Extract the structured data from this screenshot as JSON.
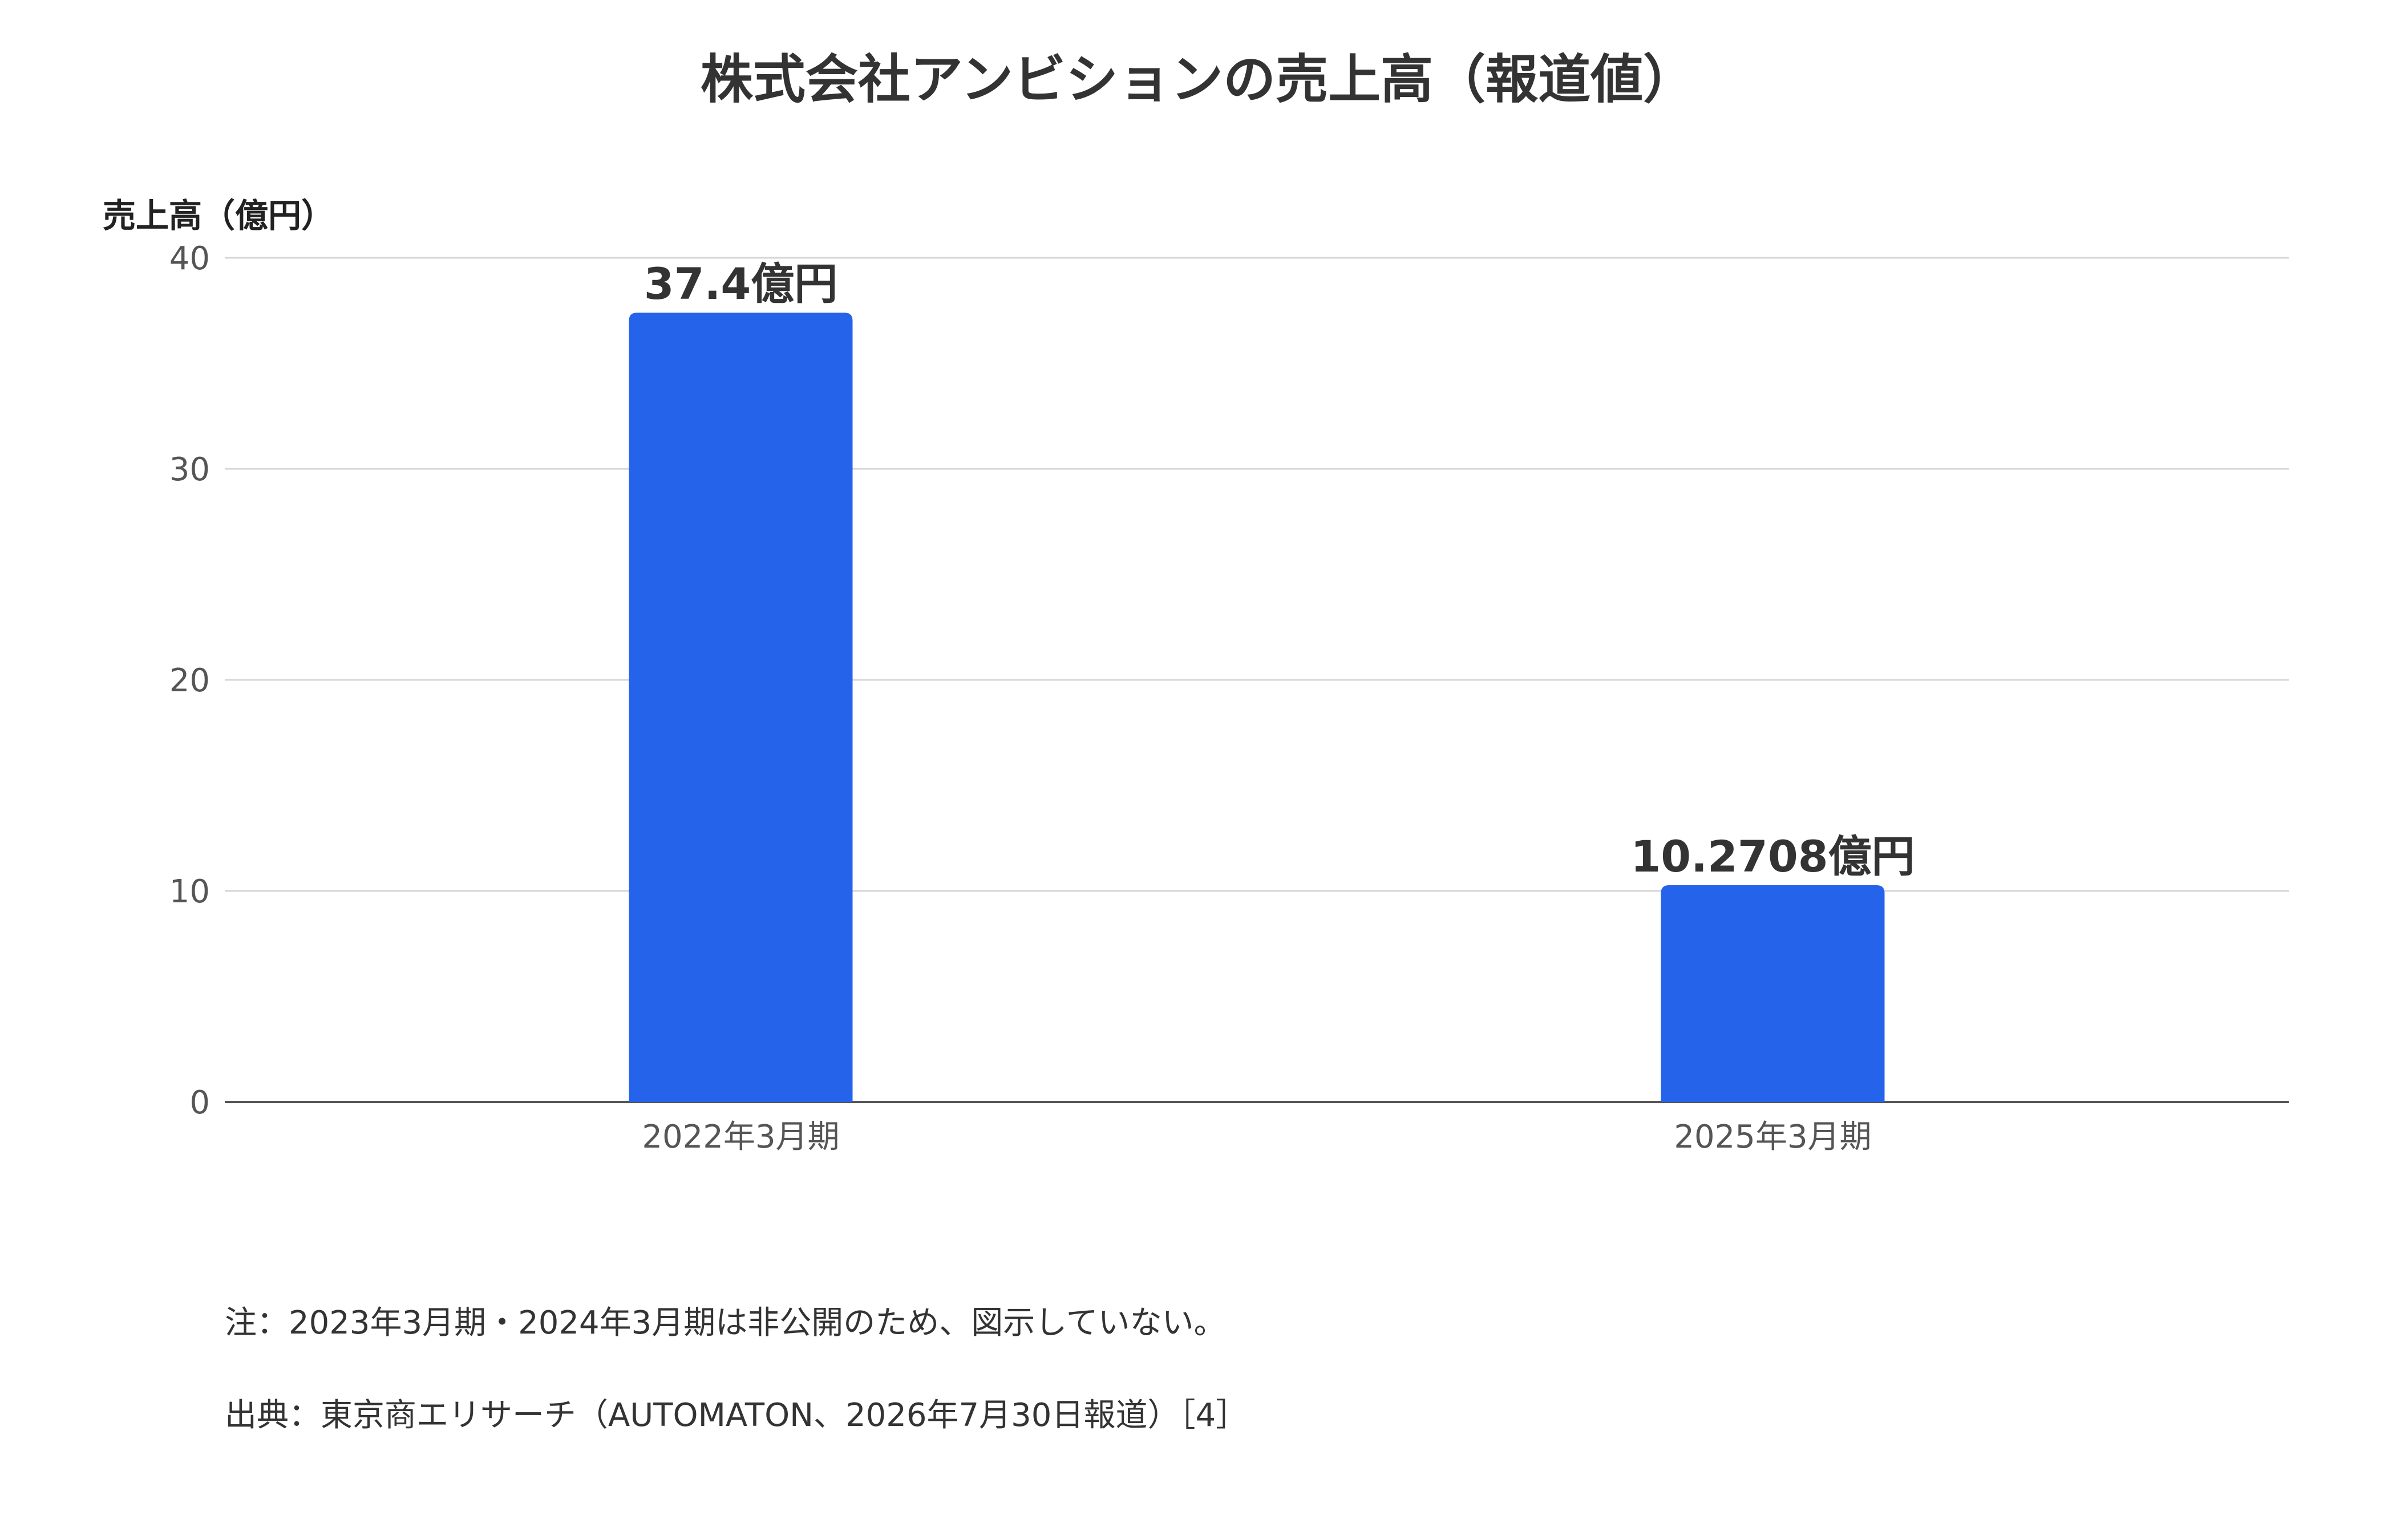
{
  "chart_data": {
    "type": "bar",
    "title": "株式会社アンビションの売上高（報道値）",
    "ylabel": "売上高（億円）",
    "xlabel": "",
    "categories": [
      "2022年3月期",
      "2025年3月期"
    ],
    "values": [
      37.4,
      10.2708
    ],
    "data_labels": [
      "37.4億円",
      "10.2708億円"
    ],
    "ylim": [
      0,
      40
    ],
    "yticks": [
      0,
      10,
      20,
      30,
      40
    ],
    "grid": true,
    "legend": "none",
    "bar_color": "#2563eb"
  },
  "notes": {
    "note": "注：2023年3月期・2024年3月期は非公開のため、図示していない。",
    "source": "出典：東京商エリサーチ（AUTOMATON、2026年7月30日報道）［4］"
  }
}
